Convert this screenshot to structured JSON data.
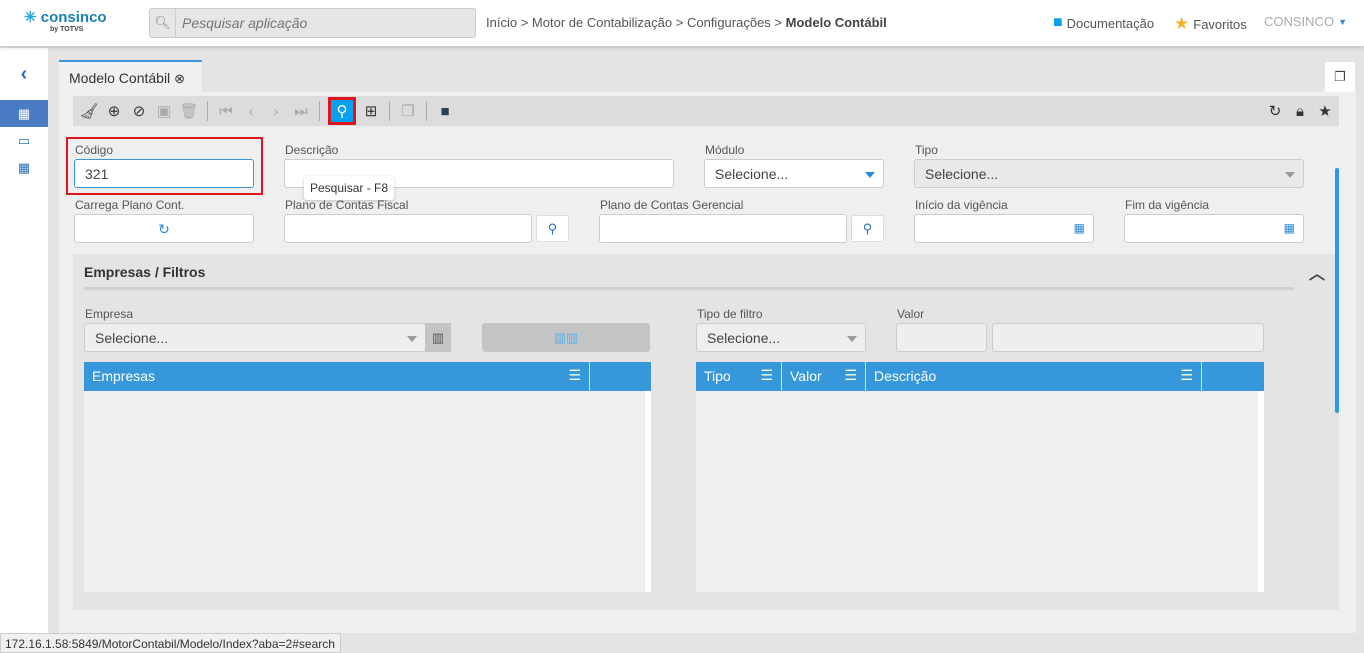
{
  "header": {
    "logo": "consinco",
    "logo_sub": "by TOTVS",
    "search_placeholder": "Pesquisar aplicação",
    "breadcrumb": [
      "Início",
      ">",
      "Motor de Contabilização",
      ">",
      "Configurações",
      ">"
    ],
    "breadcrumb_current": "Modelo Contábil",
    "documentation": "Documentação",
    "favorites": "Favoritos",
    "user": "CONSINCO"
  },
  "tab": {
    "label": "Modelo Contábil"
  },
  "toolbar": {
    "tooltip": "Pesquisar - F8",
    "active": "search"
  },
  "form": {
    "codigo": {
      "label": "Código",
      "value": "321"
    },
    "descricao": {
      "label": "Descrição",
      "value": ""
    },
    "modulo": {
      "label": "Módulo",
      "value": "Selecione..."
    },
    "tipo": {
      "label": "Tipo",
      "value": "Selecione..."
    },
    "carrega": {
      "label": "Carrega Plano Cont."
    },
    "plano_fiscal": {
      "label": "Plano de Contas Fiscal",
      "value": ""
    },
    "plano_gerencial": {
      "label": "Plano de Contas Gerencial",
      "value": ""
    },
    "inicio": {
      "label": "Início da vigência",
      "value": ""
    },
    "fim": {
      "label": "Fim da vigência",
      "value": ""
    }
  },
  "section": {
    "title": "Empresas / Filtros",
    "empresa": {
      "label": "Empresa",
      "value": "Selecione..."
    },
    "tipo_filtro": {
      "label": "Tipo de filtro",
      "value": "Selecione..."
    },
    "valor": {
      "label": "Valor"
    },
    "grid_empresas": {
      "columns": [
        "Empresas"
      ]
    },
    "grid_filtros": {
      "columns": [
        "Tipo",
        "Valor",
        "Descrição"
      ]
    }
  },
  "status_url": "172.16.1.58:5849/MotorContabil/Modelo/Index?aba=2#search",
  "colors": {
    "accent": "#3698da",
    "highlight": "#e0141e",
    "active_button": "#0aa0f0"
  }
}
